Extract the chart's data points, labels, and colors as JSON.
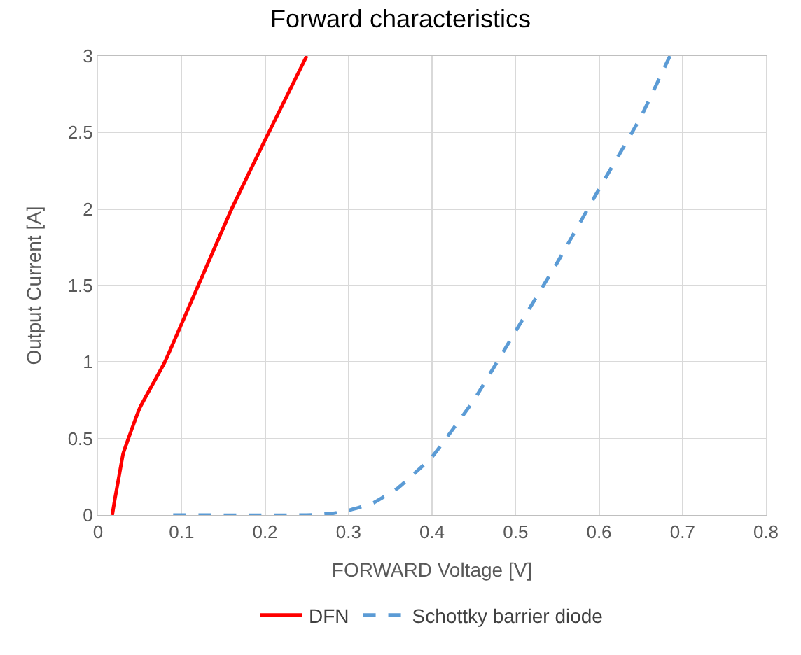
{
  "chart_data": {
    "type": "line",
    "title": "Forward characteristics",
    "xlabel": "FORWARD Voltage [V]",
    "ylabel": "Output Current [A]",
    "xlim": [
      0,
      0.8
    ],
    "xticks": [
      0,
      0.1,
      0.2,
      0.3,
      0.4,
      0.5,
      0.6,
      0.7,
      0.8
    ],
    "ylim": [
      0,
      3
    ],
    "yticks": [
      0,
      0.5,
      1,
      1.5,
      2,
      2.5,
      3
    ],
    "grid": true,
    "legend": "bottom",
    "series": [
      {
        "name": "DFN",
        "color": "#ff0000",
        "line_style": "solid",
        "x": [
          0.017,
          0.02,
          0.025,
          0.03,
          0.035,
          0.05,
          0.08,
          0.12,
          0.16,
          0.2,
          0.25
        ],
        "values": [
          0,
          0.1,
          0.25,
          0.4,
          0.48,
          0.7,
          1.0,
          1.5,
          2.0,
          2.45,
          3
        ]
      },
      {
        "name": "Schottky barrier diode",
        "color": "#5b9bd5",
        "line_style": "dashed",
        "x": [
          0.09,
          0.25,
          0.28,
          0.3,
          0.33,
          0.36,
          0.4,
          0.45,
          0.5,
          0.55,
          0.6,
          0.65,
          0.685
        ],
        "values": [
          0,
          0,
          0.01,
          0.03,
          0.08,
          0.18,
          0.38,
          0.75,
          1.2,
          1.65,
          2.13,
          2.6,
          3
        ]
      }
    ]
  }
}
